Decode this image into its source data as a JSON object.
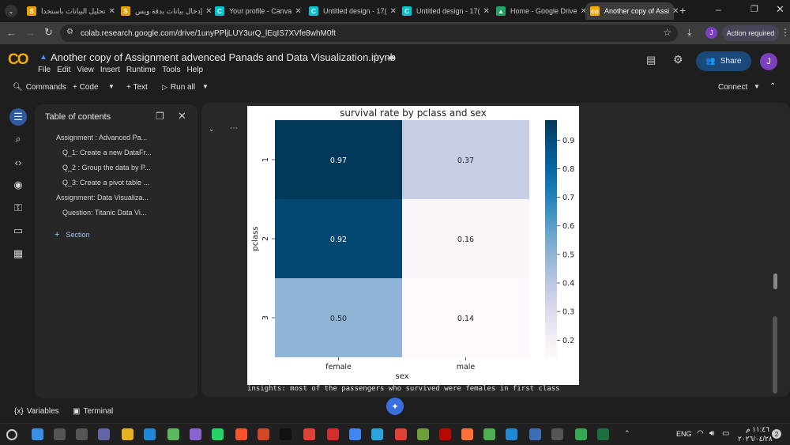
{
  "browser": {
    "tabs": [
      {
        "title": "تحليل البيانات باستخدا",
        "icon": "spreadsheet-favicon-icon",
        "color": "#e8a000",
        "letter": "S"
      },
      {
        "title": "إدخال بيانات بدقة وبس",
        "icon": "spreadsheet-favicon-icon",
        "color": "#e8a000",
        "letter": "S"
      },
      {
        "title": "Your profile - Canva",
        "icon": "canva-favicon-icon",
        "color": "#00c4cc",
        "letter": "C"
      },
      {
        "title": "Untitled design - 17(",
        "icon": "canva-favicon-icon",
        "color": "#00c4cc",
        "letter": "C"
      },
      {
        "title": "Untitled design - 17(",
        "icon": "canva-favicon-icon",
        "color": "#00c4cc",
        "letter": "C"
      },
      {
        "title": "Home - Google Drive",
        "icon": "drive-favicon-icon",
        "color": "#1fa463",
        "letter": "▲"
      },
      {
        "title": "Another copy of Assi",
        "icon": "colab-favicon-icon",
        "color": "#f9ab00",
        "letter": "co"
      }
    ],
    "url": "colab.research.google.com/drive/1unyPPljLUY3urQ_lEqIS7XVfe8whM0ft",
    "profile_initial": "J",
    "action_required": "Action required"
  },
  "colab": {
    "logo": "CO",
    "notebook_title": "Another copy of Assignment advenced Panads and Data Visualization.ipynb",
    "menu": [
      "File",
      "Edit",
      "View",
      "Insert",
      "Runtime",
      "Tools",
      "Help"
    ],
    "share_label": "Share",
    "user_initial": "J",
    "toolbar": {
      "commands": "Commands",
      "code": "+ Code",
      "text": "+ Text",
      "run_all": "Run all",
      "connect": "Connect"
    }
  },
  "toc": {
    "title": "Table of contents",
    "items": [
      "Assignment : Advanced Pa...",
      "Q_1: Create a new DataFr...",
      "Q_2 : Group the data by P...",
      "Q_3: Create a pivot table ...",
      "Assignment: Data Visualiza...",
      "Question: Titanic Data Vi..."
    ],
    "add_section": "Section"
  },
  "output": {
    "insights": "insights: most of the passengers who survived were females in first class"
  },
  "chart_data": {
    "type": "heatmap",
    "title": "survival rate by pclass and sex",
    "xlabel": "sex",
    "ylabel": "pclass",
    "x_categories": [
      "female",
      "male"
    ],
    "y_categories": [
      "1",
      "2",
      "3"
    ],
    "values": [
      [
        0.97,
        0.37
      ],
      [
        0.92,
        0.16
      ],
      [
        0.5,
        0.14
      ]
    ],
    "colormap": "PuBu",
    "colorbar_ticks": [
      "0.9",
      "0.8",
      "0.7",
      "0.6",
      "0.5",
      "0.4",
      "0.3",
      "0.2"
    ],
    "colorbar_range": [
      0.14,
      0.97
    ]
  },
  "statusbar": {
    "variables": "Variables",
    "terminal": "Terminal"
  },
  "taskbar": {
    "language": "ENG",
    "time": "١١:٤٦ م",
    "date": "٢٠٢٦/٠٤/٢٨",
    "notification_count": "2"
  }
}
